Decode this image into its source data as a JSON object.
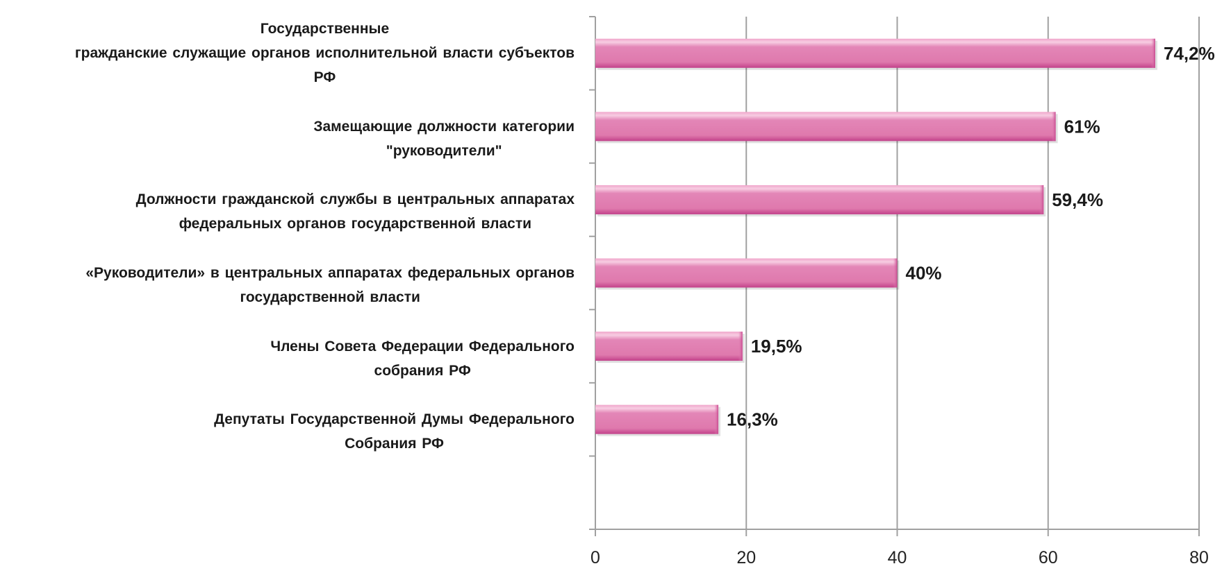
{
  "chart_data": {
    "type": "bar",
    "orientation": "horizontal",
    "title": "",
    "xlabel": "",
    "ylabel": "",
    "categories": [
      [
        "Государственные",
        "гражданские служащие органов исполнительной власти субъектов",
        "РФ"
      ],
      [
        "Замещающие должности категории",
        "\"руководители\""
      ],
      [
        "Должности гражданской службы в центральных аппаратах",
        "федеральных органов государственной власти"
      ],
      [
        "«Руководители» в центральных аппаратах федеральных органов",
        "государственной власти"
      ],
      [
        "Члены Совета Федерации Федерального",
        "собрания РФ"
      ],
      [
        "Депутаты Государственной Думы Федерального",
        "Собрания РФ"
      ]
    ],
    "values": [
      74.2,
      61,
      59.4,
      40,
      19.5,
      16.3
    ],
    "data_labels": [
      "74,2%",
      "61%",
      "59,4%",
      "40%",
      "19,5%",
      "16,3%"
    ],
    "xlim": [
      0,
      80
    ],
    "xticks": [
      0,
      20,
      40,
      60,
      80
    ],
    "xtick_labels": [
      "0",
      "20",
      "40",
      "60",
      "80"
    ],
    "grid": "vertical",
    "legend": "none",
    "colors": {
      "bar": "#e07aae",
      "bar_dark": "#c2418a",
      "bar_light": "#f3b8d6",
      "grid": "#a0a0a0",
      "text": "#1a1a1a"
    }
  }
}
